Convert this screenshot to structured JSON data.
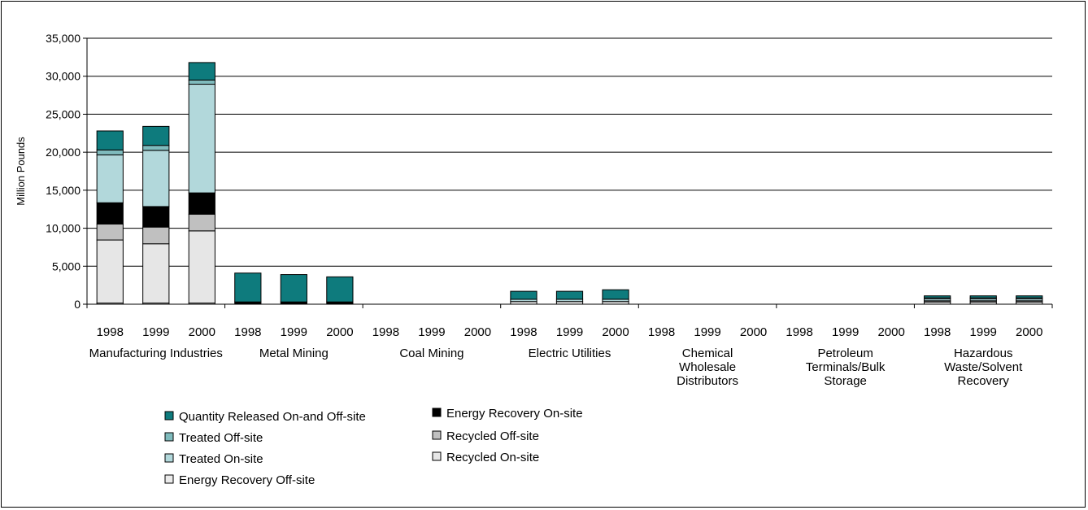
{
  "chart_data": {
    "type": "bar",
    "stacked": true,
    "ylabel": "Million Pounds",
    "ylim": [
      0,
      35000
    ],
    "yticks": [
      "0",
      "5,000",
      "10,000",
      "15,000",
      "20,000",
      "25,000",
      "30,000",
      "35,000"
    ],
    "grid": true,
    "legend_position": "bottom",
    "groups": [
      {
        "label": [
          "Manufacturing Industries"
        ],
        "years": [
          "1998",
          "1999",
          "2000"
        ]
      },
      {
        "label": [
          "Metal Mining"
        ],
        "years": [
          "1998",
          "1999",
          "2000"
        ]
      },
      {
        "label": [
          "Coal Mining"
        ],
        "years": [
          "1998",
          "1999",
          "2000"
        ]
      },
      {
        "label": [
          "Electric Utilities"
        ],
        "years": [
          "1998",
          "1999",
          "2000"
        ]
      },
      {
        "label": [
          "Chemical",
          "Wholesale",
          "Distributors"
        ],
        "years": [
          "1998",
          "1999",
          "2000"
        ]
      },
      {
        "label": [
          "Petroleum",
          "Terminals/Bulk",
          "Storage"
        ],
        "years": [
          "1998",
          "1999",
          "2000"
        ]
      },
      {
        "label": [
          "Hazardous",
          "Waste/Solvent",
          "Recovery"
        ],
        "years": [
          "1998",
          "1999",
          "2000"
        ]
      }
    ],
    "series": [
      {
        "name": "Energy Recovery Off-site",
        "color": "#ebebeb",
        "values": [
          150,
          150,
          150,
          0,
          0,
          0,
          0,
          0,
          0,
          0,
          0,
          0,
          0,
          0,
          0,
          0,
          0,
          0,
          0,
          0,
          0
        ]
      },
      {
        "name": "Recycled On-site",
        "color": "#e6e6e6",
        "values": [
          8300,
          7800,
          9500,
          0,
          0,
          0,
          0,
          0,
          0,
          350,
          350,
          350,
          0,
          0,
          0,
          0,
          0,
          0,
          300,
          300,
          300
        ]
      },
      {
        "name": "Recycled Off-site",
        "color": "#c0c0c0",
        "values": [
          2100,
          2200,
          2200,
          0,
          0,
          0,
          0,
          0,
          0,
          0,
          0,
          0,
          0,
          0,
          0,
          0,
          0,
          0,
          150,
          150,
          150
        ]
      },
      {
        "name": "Energy Recovery On-site",
        "color": "#000000",
        "values": [
          2800,
          2700,
          2800,
          300,
          300,
          300,
          0,
          0,
          0,
          0,
          0,
          0,
          0,
          0,
          0,
          0,
          0,
          0,
          0,
          0,
          0
        ]
      },
      {
        "name": "Treated On-site",
        "color": "#b2d8db",
        "values": [
          6300,
          7400,
          14300,
          0,
          0,
          0,
          0,
          0,
          0,
          300,
          300,
          300,
          0,
          0,
          0,
          0,
          0,
          0,
          250,
          250,
          250
        ]
      },
      {
        "name": "Treated Off-site",
        "color": "#7fbbbd",
        "values": [
          650,
          650,
          550,
          0,
          0,
          0,
          0,
          0,
          0,
          0,
          0,
          0,
          0,
          0,
          0,
          0,
          0,
          0,
          150,
          150,
          150
        ]
      },
      {
        "name": "Quantity Released On-and Off-site",
        "color": "#0e7b7d",
        "values": [
          2500,
          2500,
          2300,
          3800,
          3600,
          3300,
          0,
          0,
          0,
          1050,
          1050,
          1250,
          0,
          0,
          0,
          0,
          0,
          0,
          250,
          250,
          250
        ]
      }
    ],
    "legend": [
      {
        "label": "Quantity Released On-and Off-site",
        "color": "#0e7b7d"
      },
      {
        "label": "Energy Recovery On-site",
        "color": "#000000"
      },
      {
        "label": "Treated Off-site",
        "color": "#7fbbbd"
      },
      {
        "label": "Recycled Off-site",
        "color": "#c0c0c0"
      },
      {
        "label": "Treated On-site",
        "color": "#b2d8db"
      },
      {
        "label": "Recycled On-site",
        "color": "#e6e6e6"
      },
      {
        "label": "Energy Recovery Off-site",
        "color": "#ebebeb"
      }
    ]
  }
}
